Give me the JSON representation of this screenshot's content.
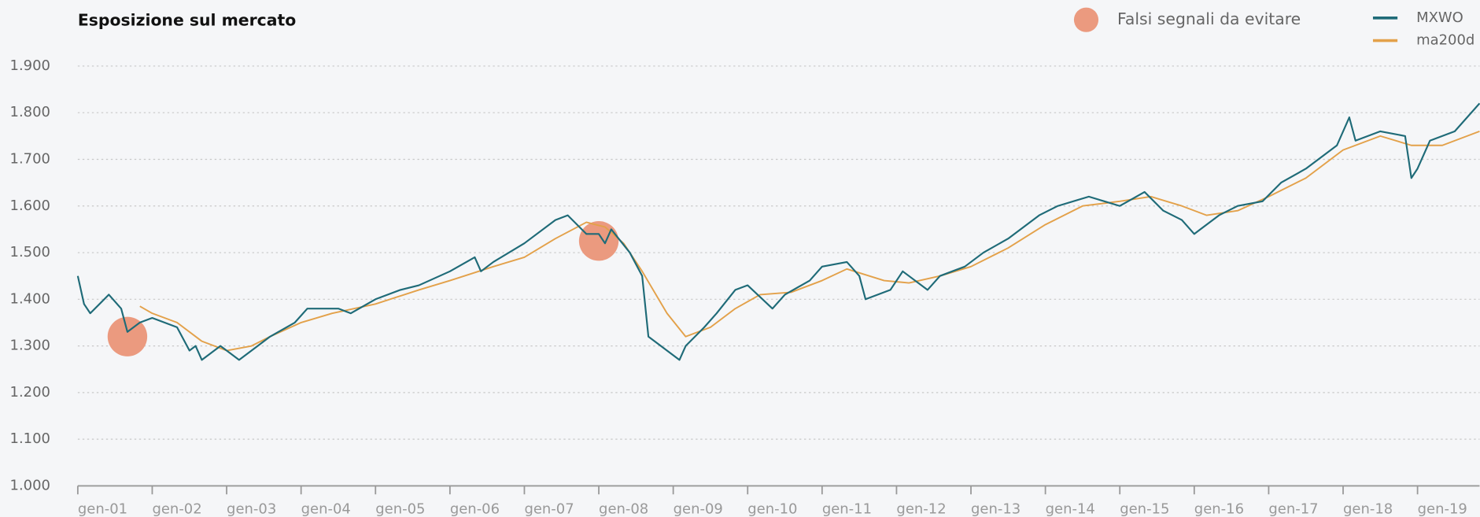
{
  "chart_data": {
    "type": "line",
    "title": "Esposizione sul mercato",
    "xlim": [
      "2001-01",
      "2019-11"
    ],
    "xticks": [
      {
        "value": "2001-01",
        "label": "gen-01"
      },
      {
        "value": "2002-01",
        "label": "gen-02"
      },
      {
        "value": "2003-01",
        "label": "gen-03"
      },
      {
        "value": "2004-01",
        "label": "gen-04"
      },
      {
        "value": "2005-01",
        "label": "gen-05"
      },
      {
        "value": "2006-01",
        "label": "gen-06"
      },
      {
        "value": "2007-01",
        "label": "gen-07"
      },
      {
        "value": "2008-01",
        "label": "gen-08"
      },
      {
        "value": "2009-01",
        "label": "gen-09"
      },
      {
        "value": "2010-01",
        "label": "gen-10"
      },
      {
        "value": "2011-01",
        "label": "gen-11"
      },
      {
        "value": "2012-01",
        "label": "gen-12"
      },
      {
        "value": "2013-01",
        "label": "gen-13"
      },
      {
        "value": "2014-01",
        "label": "gen-14"
      },
      {
        "value": "2015-01",
        "label": "gen-15"
      },
      {
        "value": "2016-01",
        "label": "gen-16"
      },
      {
        "value": "2017-01",
        "label": "gen-17"
      },
      {
        "value": "2018-01",
        "label": "gen-18"
      },
      {
        "value": "2019-01",
        "label": "gen-19"
      }
    ],
    "ylim": [
      1000,
      1900
    ],
    "yticks": [
      {
        "value": 1000,
        "label": "1.000"
      },
      {
        "value": 1100,
        "label": "1.100"
      },
      {
        "value": 1200,
        "label": "1.200"
      },
      {
        "value": 1300,
        "label": "1.300"
      },
      {
        "value": 1400,
        "label": "1.400"
      },
      {
        "value": 1500,
        "label": "1.500"
      },
      {
        "value": 1600,
        "label": "1.600"
      },
      {
        "value": 1700,
        "label": "1.700"
      },
      {
        "value": 1800,
        "label": "1.800"
      },
      {
        "value": 1900,
        "label": "1.900"
      }
    ],
    "grid": true,
    "series": [
      {
        "name": "MXWO",
        "color": "#1f6b78",
        "x": [
          "2001-01",
          "2001-02",
          "2001-03",
          "2001-06",
          "2001-08",
          "2001-09",
          "2001-11",
          "2002-01",
          "2002-05",
          "2002-07",
          "2002-08",
          "2002-09",
          "2002-12",
          "2003-01",
          "2003-03",
          "2003-06",
          "2003-08",
          "2003-12",
          "2004-02",
          "2004-07",
          "2004-09",
          "2005-01",
          "2005-05",
          "2005-08",
          "2006-01",
          "2006-05",
          "2006-06",
          "2006-08",
          "2007-01",
          "2007-06",
          "2007-08",
          "2007-11",
          "2008-01",
          "2008-02",
          "2008-03",
          "2008-06",
          "2008-08",
          "2008-09",
          "2008-11",
          "2008-12",
          "2009-02",
          "2009-03",
          "2009-06",
          "2009-08",
          "2009-11",
          "2010-01",
          "2010-05",
          "2010-07",
          "2010-11",
          "2011-01",
          "2011-05",
          "2011-07",
          "2011-08",
          "2011-12",
          "2012-02",
          "2012-06",
          "2012-08",
          "2012-12",
          "2013-03",
          "2013-07",
          "2013-12",
          "2014-03",
          "2014-08",
          "2015-01",
          "2015-05",
          "2015-08",
          "2015-11",
          "2016-01",
          "2016-05",
          "2016-08",
          "2016-12",
          "2017-03",
          "2017-07",
          "2017-12",
          "2018-02",
          "2018-03",
          "2018-07",
          "2018-11",
          "2018-12",
          "2019-01",
          "2019-03",
          "2019-07",
          "2019-11"
        ],
        "values": [
          1450,
          1390,
          1370,
          1410,
          1380,
          1330,
          1350,
          1360,
          1340,
          1290,
          1300,
          1270,
          1300,
          1290,
          1270,
          1300,
          1320,
          1350,
          1380,
          1380,
          1370,
          1400,
          1420,
          1430,
          1460,
          1490,
          1460,
          1480,
          1520,
          1570,
          1580,
          1540,
          1540,
          1520,
          1550,
          1500,
          1450,
          1320,
          1300,
          1290,
          1270,
          1300,
          1340,
          1370,
          1420,
          1430,
          1380,
          1410,
          1440,
          1470,
          1480,
          1450,
          1400,
          1420,
          1460,
          1420,
          1450,
          1470,
          1500,
          1530,
          1580,
          1600,
          1620,
          1600,
          1630,
          1590,
          1570,
          1540,
          1580,
          1600,
          1610,
          1650,
          1680,
          1730,
          1790,
          1740,
          1760,
          1750,
          1660,
          1680,
          1740,
          1760,
          1820
        ]
      },
      {
        "name": "ma200d",
        "color": "#e3a14a",
        "x": [
          "2001-11",
          "2002-01",
          "2002-05",
          "2002-09",
          "2003-01",
          "2003-05",
          "2003-08",
          "2004-01",
          "2004-06",
          "2005-01",
          "2005-08",
          "2006-01",
          "2006-08",
          "2007-01",
          "2007-06",
          "2007-11",
          "2008-02",
          "2008-05",
          "2008-08",
          "2008-12",
          "2009-03",
          "2009-07",
          "2009-11",
          "2010-03",
          "2010-08",
          "2011-01",
          "2011-05",
          "2011-11",
          "2012-03",
          "2012-08",
          "2013-01",
          "2013-07",
          "2014-01",
          "2014-07",
          "2015-01",
          "2015-06",
          "2015-11",
          "2016-03",
          "2016-08",
          "2017-01",
          "2017-07",
          "2018-01",
          "2018-07",
          "2018-12",
          "2019-05",
          "2019-11"
        ],
        "values": [
          1385,
          1370,
          1350,
          1310,
          1290,
          1300,
          1320,
          1350,
          1370,
          1390,
          1420,
          1440,
          1470,
          1490,
          1530,
          1565,
          1555,
          1520,
          1460,
          1370,
          1320,
          1340,
          1380,
          1410,
          1415,
          1440,
          1465,
          1440,
          1435,
          1450,
          1470,
          1510,
          1560,
          1600,
          1610,
          1620,
          1600,
          1580,
          1590,
          1620,
          1660,
          1720,
          1750,
          1730,
          1730,
          1760
        ]
      }
    ],
    "markers": {
      "name": "Falsi segnali da evitare",
      "color": "#eb9a7f",
      "x": [
        "2001-09",
        "2008-01"
      ],
      "values": [
        1320,
        1525
      ]
    }
  }
}
